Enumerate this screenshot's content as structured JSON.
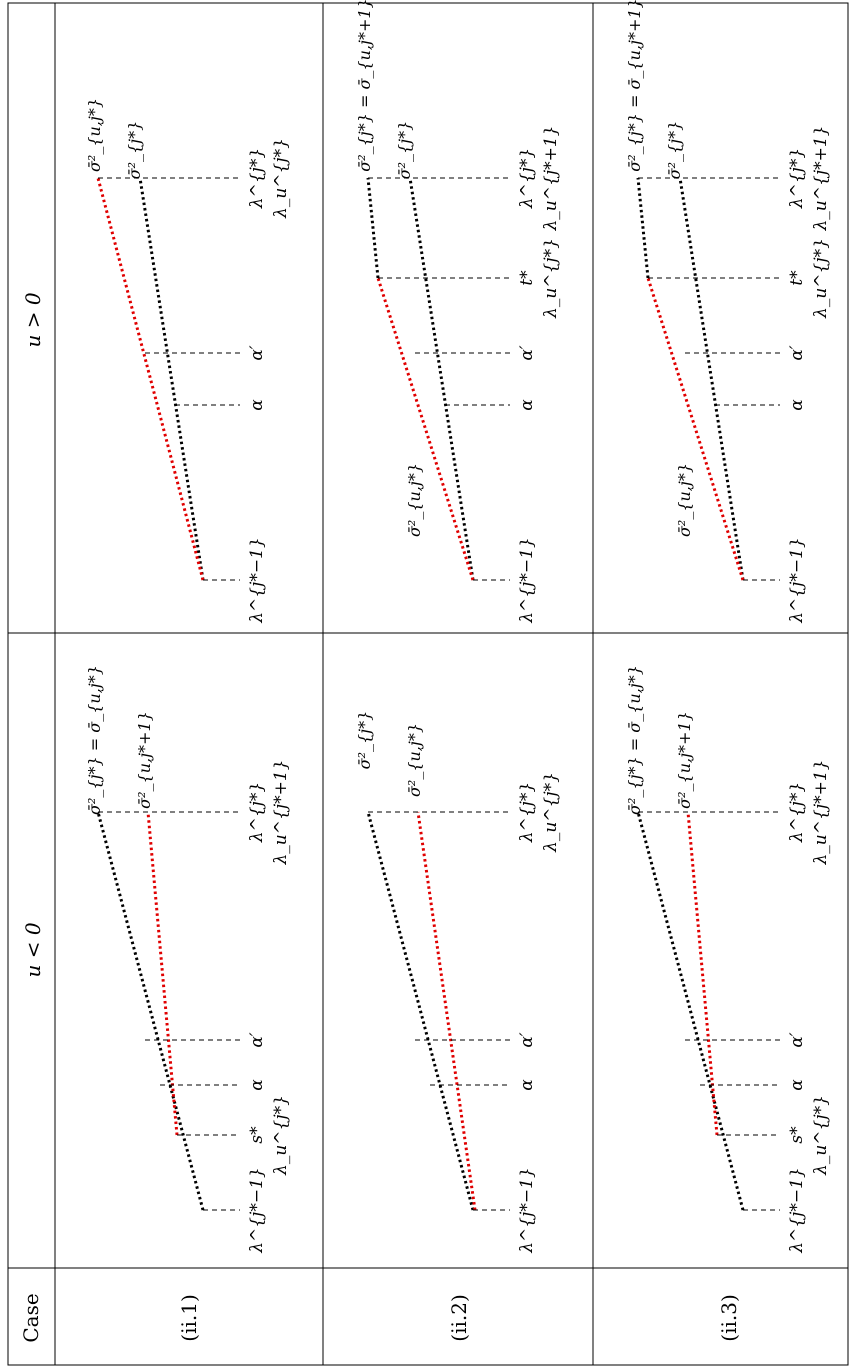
{
  "header": {
    "case": "Case",
    "u_neg": "u < 0",
    "u_pos": "u > 0"
  },
  "rows": [
    {
      "case_label": "(ii.1)",
      "neg": {
        "left": "λ^{j*−1}",
        "kink": [
          "s*",
          "λ_u^{j*}"
        ],
        "alpha": "α",
        "alphap": "α′",
        "right": [
          "λ^{j*}",
          "λ_u^{j*+1}"
        ],
        "top_black": "σ̄²_{j*} = σ̄_{u,j*}",
        "top_red": "σ̄²_{u,j*+1}"
      },
      "pos": {
        "left": "λ^{j*−1}",
        "alpha": "α",
        "alphap": "α′",
        "right": [
          "λ^{j*}",
          "λ_u^{j*}"
        ],
        "top_black": "σ̄²_{j*}",
        "top_red": "σ̄²_{u,j*}"
      }
    },
    {
      "case_label": "(ii.2)",
      "neg": {
        "left": "λ^{j*−1}",
        "alpha": "α",
        "alphap": "α′",
        "right": [
          "λ^{j*}",
          "λ_u^{j*}"
        ],
        "top_black": "σ̄²_{j*}",
        "top_red": "σ̄²_{u,j*}"
      },
      "pos": {
        "left": "λ^{j*−1}",
        "alpha": "α",
        "alphap": "α′",
        "kink": [
          "t*",
          "λ_u^{j*}"
        ],
        "right": [
          "λ^{j*}",
          "λ_u^{j*+1}"
        ],
        "top_black": "σ̄²_{j*}",
        "top_red": "σ̄²_{j*} = σ̄_{u,j*+1}",
        "mid_red": "σ̄²_{u,j*}"
      }
    },
    {
      "case_label": "(ii.3)",
      "neg": {
        "left": "λ^{j*−1}",
        "kink": [
          "s*",
          "λ_u^{j*}"
        ],
        "alpha": "α",
        "alphap": "α′",
        "right": [
          "λ^{j*}",
          "λ_u^{j*+1}"
        ],
        "top_black": "σ̄²_{j*} = σ̄_{u,j*}",
        "top_red": "σ̄²_{u,j*+1}"
      },
      "pos": {
        "left": "λ^{j*−1}",
        "alpha": "α",
        "alphap": "α′",
        "kink": [
          "t*",
          "λ_u^{j*}"
        ],
        "right": [
          "λ^{j*}",
          "λ_u^{j*+1}"
        ],
        "top_black": "σ̄²_{j*}",
        "top_red": "σ̄²_{j*} = σ̄_{u,j*+1}",
        "mid_red": "σ̄²_{u,j*}"
      }
    }
  ],
  "colors": {
    "black_line": "#000000",
    "red_line": "#e00000",
    "guide": "#000000"
  }
}
